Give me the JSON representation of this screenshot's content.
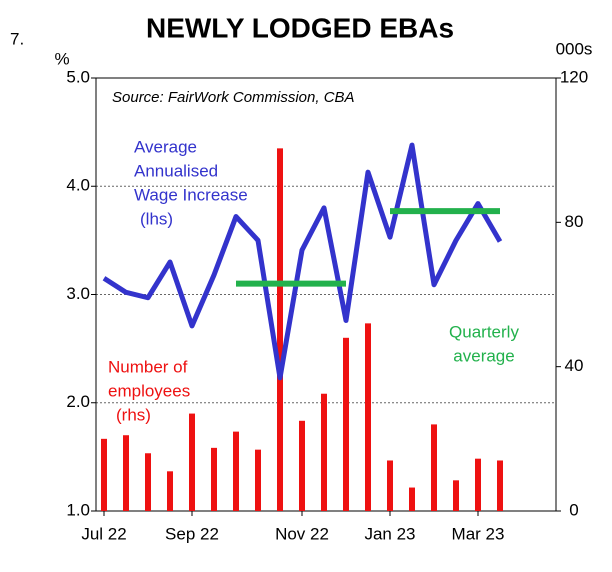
{
  "chart_data": {
    "type": "bar-line",
    "figure_number": "7.",
    "title": "NEWLY LODGED EBAs",
    "ylabel": "%",
    "y2label": "000s",
    "source": "Source: FairWork Commission, CBA",
    "categories": [
      "Jul 22",
      null,
      null,
      null,
      "Sep 22",
      null,
      null,
      null,
      null,
      "Nov 22",
      null,
      null,
      null,
      "Jan 23",
      null,
      null,
      null,
      "Mar 23",
      null
    ],
    "series": [
      {
        "name": [
          "Number of",
          "employees",
          "(rhs)"
        ],
        "type": "bar",
        "axis": "y2",
        "color": "#ee1111",
        "values": [
          20,
          21,
          16,
          11,
          27,
          17.5,
          22,
          17,
          100.5,
          25,
          32.5,
          48,
          52,
          14,
          6.5,
          24,
          8.5,
          14.5,
          14
        ]
      },
      {
        "name": [
          "Average",
          "Annualised",
          "Wage Increase",
          "(lhs)"
        ],
        "type": "line",
        "color": "#3333cc",
        "values": [
          3.15,
          3.02,
          2.97,
          3.3,
          2.71,
          3.18,
          3.72,
          3.5,
          2.23,
          3.41,
          3.8,
          2.76,
          4.13,
          3.53,
          4.38,
          3.09,
          3.5,
          3.84,
          3.49
        ]
      },
      {
        "name": [
          "Quarterly",
          "average"
        ],
        "type": "step",
        "color": "#22b14c",
        "values": [
          null,
          null,
          null,
          null,
          null,
          null,
          3.1,
          3.1,
          3.1,
          3.1,
          3.1,
          3.1,
          null,
          3.77,
          3.77,
          3.77,
          3.77,
          3.77,
          3.77
        ]
      }
    ],
    "ylim": [
      1.0,
      5.0
    ],
    "yticks": [
      {
        "value": 1.0,
        "label": "1.0"
      },
      {
        "value": 2.0,
        "label": "2.0"
      },
      {
        "value": 3.0,
        "label": "3.0"
      },
      {
        "value": 4.0,
        "label": "4.0"
      },
      {
        "value": 5.0,
        "label": "5.0"
      }
    ],
    "y2lim": [
      0,
      120
    ],
    "y2ticks": [
      0,
      40,
      80,
      120
    ],
    "grid": true
  }
}
